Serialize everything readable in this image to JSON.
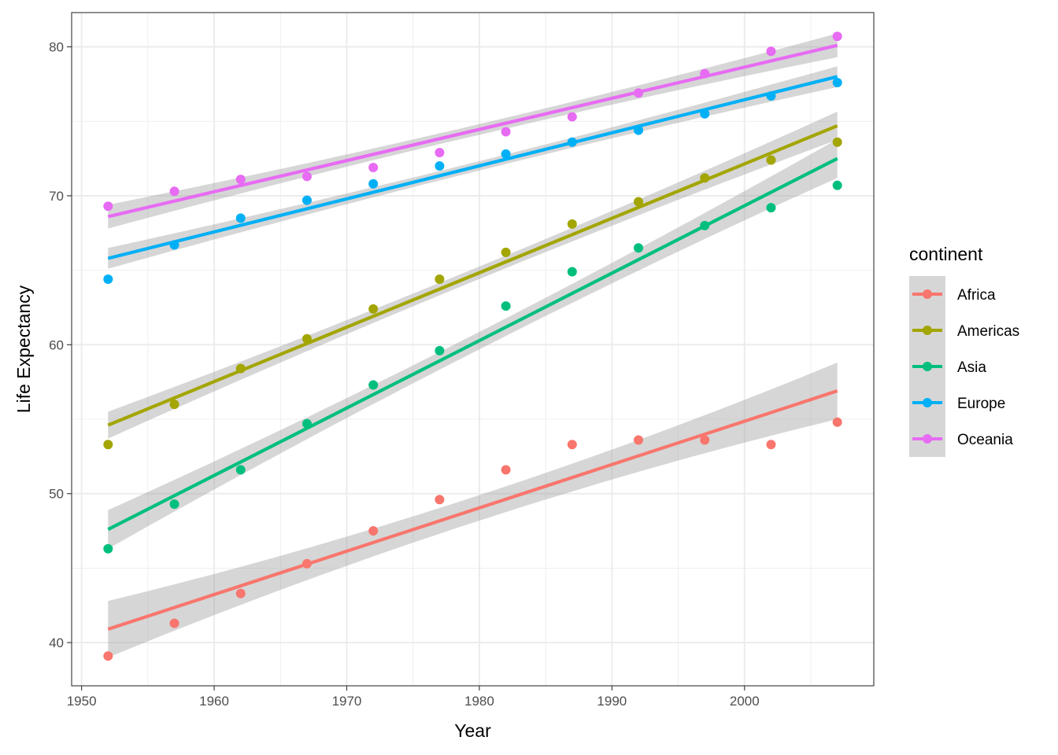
{
  "chart_data": {
    "type": "scatter",
    "title": "",
    "xlabel": "Year",
    "ylabel": "Life Expectancy",
    "xlim": [
      1949.25,
      2009.75
    ],
    "ylim": [
      37.1,
      82.3
    ],
    "x_major_ticks": [
      1950,
      1960,
      1970,
      1980,
      1990,
      2000
    ],
    "x_minor_ticks": [
      1955,
      1965,
      1975,
      1985,
      1995,
      2005
    ],
    "y_major_ticks": [
      40,
      50,
      60,
      70,
      80
    ],
    "y_minor_ticks": [
      45,
      55,
      65,
      75
    ],
    "x_tick_labels": [
      "1950",
      "1960",
      "1970",
      "1980",
      "1990",
      "2000"
    ],
    "y_tick_labels": [
      "40",
      "50",
      "60",
      "70",
      "80"
    ],
    "grid": true,
    "legend": {
      "title": "continent",
      "position": "right"
    },
    "x": [
      1952,
      1957,
      1962,
      1967,
      1972,
      1977,
      1982,
      1987,
      1992,
      1997,
      2002,
      2007
    ],
    "series": [
      {
        "name": "Africa",
        "color": "#F8766D",
        "values": [
          39.1,
          41.3,
          43.3,
          45.3,
          47.5,
          49.6,
          51.6,
          53.3,
          53.6,
          53.6,
          53.3,
          54.8
        ],
        "fit": {
          "start": 40.9,
          "end": 56.9,
          "ci_half_start": 1.9,
          "ci_half_end": 1.9
        }
      },
      {
        "name": "Americas",
        "color": "#A3A500",
        "values": [
          53.3,
          56.0,
          58.4,
          60.4,
          62.4,
          64.4,
          66.2,
          68.1,
          69.6,
          71.2,
          72.4,
          73.6
        ],
        "fit": {
          "start": 54.6,
          "end": 74.7,
          "ci_half_start": 0.9,
          "ci_half_end": 0.95
        }
      },
      {
        "name": "Asia",
        "color": "#00BF7D",
        "values": [
          46.3,
          49.3,
          51.6,
          54.7,
          57.3,
          59.6,
          62.6,
          64.9,
          66.5,
          68.0,
          69.2,
          70.7
        ],
        "fit": {
          "start": 47.6,
          "end": 72.5,
          "ci_half_start": 1.3,
          "ci_half_end": 1.3
        }
      },
      {
        "name": "Europe",
        "color": "#00B0F6",
        "values": [
          64.4,
          66.7,
          68.5,
          69.7,
          70.8,
          72.0,
          72.8,
          73.6,
          74.4,
          75.5,
          76.7,
          77.6
        ],
        "fit": {
          "start": 65.8,
          "end": 78.0,
          "ci_half_start": 0.7,
          "ci_half_end": 0.7
        }
      },
      {
        "name": "Oceania",
        "color": "#E76BF3",
        "values": [
          69.3,
          70.3,
          71.1,
          71.3,
          71.9,
          72.9,
          74.3,
          75.3,
          76.9,
          78.2,
          79.7,
          80.7
        ],
        "fit": {
          "start": 68.6,
          "end": 80.1,
          "ci_half_start": 0.8,
          "ci_half_end": 0.8
        }
      }
    ]
  }
}
